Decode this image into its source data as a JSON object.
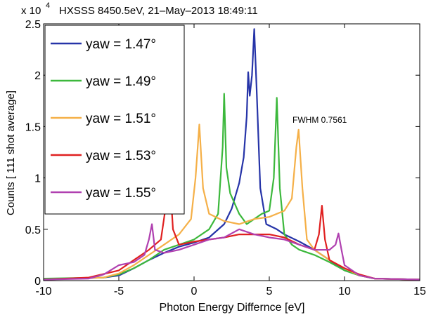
{
  "chart_data": {
    "type": "line",
    "title": "HXSSS  8450.5eV, 21–May–2013 18:49:11",
    "y_scale_label": "x 10",
    "y_scale_exponent": "4",
    "xlabel": "Photon Energy Differnce [eV]",
    "ylabel": "Counts [ 111 shot average]",
    "annotation": "FWHM 0.7561",
    "xlim": [
      -10,
      15
    ],
    "xticks": [
      -10,
      -5,
      0,
      5,
      10,
      15
    ],
    "ylim": [
      0,
      2.5
    ],
    "yticks": [
      0,
      0.5,
      1,
      1.5,
      2,
      2.5
    ],
    "grid": false,
    "legend": "upper-left",
    "series": [
      {
        "name": "yaw = 1.47°",
        "color": "#2634a8",
        "x": [
          -10,
          -6,
          -5,
          -4,
          -3,
          -2,
          -1,
          0,
          1,
          2,
          2.5,
          3,
          3.3,
          3.5,
          3.6,
          3.7,
          3.85,
          4.0,
          4.15,
          4.4,
          4.8,
          5.5,
          6,
          7,
          8,
          9,
          10,
          11,
          12,
          15
        ],
        "values": [
          0.01,
          0.03,
          0.05,
          0.12,
          0.2,
          0.27,
          0.33,
          0.37,
          0.42,
          0.55,
          0.7,
          0.95,
          1.2,
          1.6,
          2.03,
          1.8,
          2.0,
          2.45,
          1.9,
          0.9,
          0.55,
          0.5,
          0.45,
          0.38,
          0.3,
          0.2,
          0.1,
          0.05,
          0.02,
          0.01
        ]
      },
      {
        "name": "yaw = 1.49°",
        "color": "#3cb83c",
        "x": [
          -10,
          -6,
          -5,
          -4,
          -3,
          -2,
          -1,
          0,
          1,
          1.6,
          1.9,
          2.0,
          2.15,
          2.4,
          3,
          3.5,
          4,
          4.5,
          5,
          5.3,
          5.5,
          5.7,
          6,
          6.5,
          7,
          8,
          9,
          10,
          11,
          12,
          15
        ],
        "values": [
          0.02,
          0.03,
          0.06,
          0.12,
          0.2,
          0.3,
          0.35,
          0.4,
          0.5,
          0.65,
          1.3,
          1.82,
          1.1,
          0.85,
          0.65,
          0.55,
          0.6,
          0.65,
          0.68,
          1.0,
          1.78,
          0.9,
          0.45,
          0.35,
          0.3,
          0.25,
          0.18,
          0.1,
          0.05,
          0.02,
          0.01
        ]
      },
      {
        "name": "yaw = 1.51°",
        "color": "#f5b048",
        "x": [
          -10,
          -6,
          -5,
          -4,
          -3,
          -2,
          -1,
          -0.2,
          0.1,
          0.35,
          0.6,
          1,
          2,
          3,
          4,
          5,
          6,
          6.5,
          6.8,
          6.95,
          7.2,
          7.5,
          8,
          9,
          10,
          11,
          12,
          15
        ],
        "values": [
          0.01,
          0.03,
          0.07,
          0.15,
          0.25,
          0.35,
          0.45,
          0.6,
          1.0,
          1.52,
          0.9,
          0.65,
          0.58,
          0.55,
          0.6,
          0.62,
          0.68,
          0.8,
          1.3,
          1.47,
          0.9,
          0.4,
          0.3,
          0.2,
          0.12,
          0.05,
          0.02,
          0.01
        ]
      },
      {
        "name": "yaw = 1.53°",
        "color": "#e02020",
        "x": [
          -10,
          -7,
          -5,
          -4,
          -3,
          -2.2,
          -1.9,
          -1.65,
          -1.4,
          -1,
          0,
          1,
          2,
          3,
          4,
          5,
          6,
          7,
          8,
          8.3,
          8.5,
          8.7,
          9,
          10,
          11,
          12,
          15
        ],
        "values": [
          0.01,
          0.03,
          0.1,
          0.2,
          0.3,
          0.4,
          0.7,
          1.09,
          0.5,
          0.35,
          0.38,
          0.4,
          0.42,
          0.45,
          0.45,
          0.45,
          0.42,
          0.35,
          0.3,
          0.45,
          0.73,
          0.4,
          0.2,
          0.12,
          0.06,
          0.02,
          0.01
        ]
      },
      {
        "name": "yaw = 1.55°",
        "color": "#b040b0",
        "x": [
          -10,
          -7,
          -6,
          -5,
          -4,
          -3.3,
          -3,
          -2.8,
          -2.6,
          -2,
          -1,
          0,
          1,
          2,
          3,
          4,
          5,
          6,
          7,
          8,
          9,
          9.4,
          9.6,
          9.8,
          10,
          11,
          12,
          15
        ],
        "values": [
          0.01,
          0.02,
          0.06,
          0.15,
          0.18,
          0.25,
          0.4,
          0.55,
          0.3,
          0.27,
          0.3,
          0.35,
          0.4,
          0.42,
          0.5,
          0.45,
          0.42,
          0.4,
          0.35,
          0.3,
          0.3,
          0.35,
          0.46,
          0.3,
          0.15,
          0.05,
          0.02,
          0.01
        ]
      }
    ]
  }
}
